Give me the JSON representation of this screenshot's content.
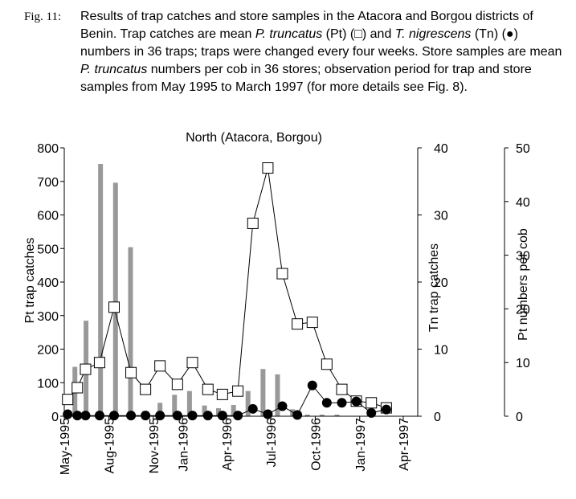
{
  "caption": {
    "label": "Fig. 11:",
    "part1": "Results of trap catches and store samples in the Atacora and Borgou districts of Benin. Trap catches are mean ",
    "species1": "P. truncatus",
    "part2": " (Pt) (□) and ",
    "species2": "T. nigrescens",
    "part3": " (Tn) (●) numbers in 36 traps; traps were changed every four weeks. Store samples are mean ",
    "species3": "P. truncatus",
    "part4": " numbers per cob in 36 stores; observation period for trap and store samples from May 1995 to March 1997 (for more details see Fig. 8)."
  },
  "colors": {
    "bars": "#999999",
    "pt_marker_fill": "#ffffff",
    "tn_marker_fill": "#000000",
    "axes": "#000000"
  },
  "chart_data": {
    "type": "bar+line",
    "title": "North (Atacora, Borgou)",
    "x_range": [
      "1995-05-01",
      "1997-05-01"
    ],
    "x_ticks": [
      {
        "date": "1995-05-01",
        "label": "May-1995"
      },
      {
        "date": "1995-08-01",
        "label": "Aug-1995"
      },
      {
        "date": "1995-11-01",
        "label": "Nov-1995"
      },
      {
        "date": "1996-01-01",
        "label": "Jan-1996"
      },
      {
        "date": "1996-04-01",
        "label": "Apr-1996"
      },
      {
        "date": "1996-07-01",
        "label": "Jul-1996"
      },
      {
        "date": "1996-10-01",
        "label": "Oct-1996"
      },
      {
        "date": "1997-01-01",
        "label": "Jan-1997"
      },
      {
        "date": "1997-04-01",
        "label": "Apr-1997"
      }
    ],
    "axes": {
      "left": {
        "label": "Pt trap catches",
        "range": [
          0,
          800
        ],
        "ticks": [
          0,
          100,
          200,
          300,
          400,
          500,
          600,
          700,
          800
        ]
      },
      "right1": {
        "label": "Tn trap catches",
        "range": [
          0,
          40
        ],
        "ticks": [
          0,
          10,
          20,
          30,
          40
        ]
      },
      "right2": {
        "label": "Pt numbers per cob",
        "range": [
          0,
          50
        ],
        "ticks": [
          0,
          10,
          20,
          30,
          40,
          50
        ]
      }
    },
    "series": [
      {
        "key": "pt_traps",
        "axis": "left",
        "type": "line",
        "marker": "open-square",
        "points": [
          [
            "1995-05-08",
            50
          ],
          [
            "1995-05-28",
            85
          ],
          [
            "1995-06-14",
            140
          ],
          [
            "1995-07-13",
            160
          ],
          [
            "1995-08-12",
            325
          ],
          [
            "1995-09-16",
            130
          ],
          [
            "1995-10-16",
            80
          ],
          [
            "1995-11-15",
            150
          ],
          [
            "1995-12-21",
            95
          ],
          [
            "1996-01-21",
            160
          ],
          [
            "1996-02-22",
            80
          ],
          [
            "1996-03-23",
            65
          ],
          [
            "1996-04-24",
            75
          ],
          [
            "1996-05-25",
            575
          ],
          [
            "1996-06-25",
            740
          ],
          [
            "1996-07-25",
            425
          ],
          [
            "1996-08-25",
            275
          ],
          [
            "1996-09-25",
            280
          ],
          [
            "1996-10-25",
            155
          ],
          [
            "1996-11-25",
            80
          ],
          [
            "1996-12-25",
            45
          ],
          [
            "1997-01-25",
            40
          ],
          [
            "1997-02-25",
            25
          ]
        ]
      },
      {
        "key": "tn_traps",
        "axis": "right1",
        "type": "line",
        "marker": "filled-circle",
        "points": [
          [
            "1995-05-08",
            0.3
          ],
          [
            "1995-05-28",
            0.1
          ],
          [
            "1995-06-14",
            0.1
          ],
          [
            "1995-07-13",
            0.1
          ],
          [
            "1995-08-12",
            0.1
          ],
          [
            "1995-09-16",
            0.1
          ],
          [
            "1995-10-16",
            0.1
          ],
          [
            "1995-11-15",
            0.1
          ],
          [
            "1995-12-21",
            0.1
          ],
          [
            "1996-01-21",
            0.1
          ],
          [
            "1996-02-22",
            0.1
          ],
          [
            "1996-03-23",
            0.1
          ],
          [
            "1996-04-24",
            0.1
          ],
          [
            "1996-05-25",
            1.1
          ],
          [
            "1996-06-25",
            0.3
          ],
          [
            "1996-07-25",
            1.5
          ],
          [
            "1996-08-25",
            0.2
          ],
          [
            "1996-09-25",
            4.6
          ],
          [
            "1996-10-25",
            2.0
          ],
          [
            "1996-11-25",
            2.0
          ],
          [
            "1996-12-25",
            2.2
          ],
          [
            "1997-01-25",
            0.5
          ],
          [
            "1997-02-25",
            1.0
          ]
        ]
      },
      {
        "key": "pt_store",
        "axis": "right2",
        "type": "bar",
        "points": [
          [
            "1995-05-23",
            9.2
          ],
          [
            "1995-06-15",
            17.8
          ],
          [
            "1995-07-15",
            47
          ],
          [
            "1995-08-15",
            43.5
          ],
          [
            "1995-09-15",
            31.5
          ],
          [
            "1995-10-15",
            1
          ],
          [
            "1995-11-15",
            2.5
          ],
          [
            "1995-12-15",
            4
          ],
          [
            "1996-01-15",
            4.7
          ],
          [
            "1996-02-15",
            2
          ],
          [
            "1996-03-15",
            1.5
          ],
          [
            "1996-04-15",
            2.1
          ],
          [
            "1996-05-15",
            4.7
          ],
          [
            "1996-06-15",
            8.8
          ],
          [
            "1996-07-15",
            7.8
          ],
          [
            "1996-08-15",
            1.3
          ],
          [
            "1996-09-15",
            0.3
          ],
          [
            "1996-10-15",
            0.3
          ],
          [
            "1996-11-15",
            0.3
          ]
        ]
      }
    ]
  }
}
